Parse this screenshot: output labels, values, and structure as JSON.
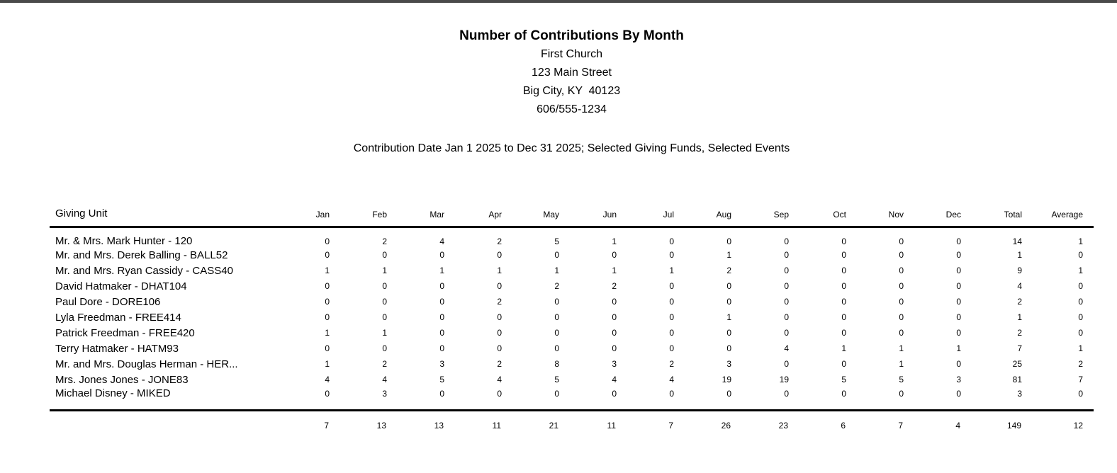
{
  "top_bar_color": "#4a4a4a",
  "header": {
    "title": "Number of Contributions By Month",
    "org_name": "First Church",
    "address_street": "123 Main Street",
    "address_city": "Big City, KY  40123",
    "phone": "606/555-1234",
    "criteria": "Contribution Date Jan 1 2025 to Dec 31 2025; Selected Giving Funds, Selected Events"
  },
  "table": {
    "unit_column_header": "Giving Unit",
    "month_headers": [
      "Jan",
      "Feb",
      "Mar",
      "Apr",
      "May",
      "Jun",
      "Jul",
      "Aug",
      "Sep",
      "Oct",
      "Nov",
      "Dec",
      "Total",
      "Average"
    ],
    "rows": [
      {
        "name": "Mr. & Mrs. Mark Hunter - 120",
        "values": [
          0,
          2,
          4,
          2,
          5,
          1,
          0,
          0,
          0,
          0,
          0,
          0,
          14,
          1
        ]
      },
      {
        "name": "Mr. and Mrs. Derek Balling - BALL52",
        "values": [
          0,
          0,
          0,
          0,
          0,
          0,
          0,
          1,
          0,
          0,
          0,
          0,
          1,
          0
        ]
      },
      {
        "name": "Mr. and Mrs. Ryan Cassidy - CASS40",
        "values": [
          1,
          1,
          1,
          1,
          1,
          1,
          1,
          2,
          0,
          0,
          0,
          0,
          9,
          1
        ]
      },
      {
        "name": "David Hatmaker - DHAT104",
        "values": [
          0,
          0,
          0,
          0,
          2,
          2,
          0,
          0,
          0,
          0,
          0,
          0,
          4,
          0
        ]
      },
      {
        "name": "Paul Dore - DORE106",
        "values": [
          0,
          0,
          0,
          2,
          0,
          0,
          0,
          0,
          0,
          0,
          0,
          0,
          2,
          0
        ]
      },
      {
        "name": "Lyla Freedman - FREE414",
        "values": [
          0,
          0,
          0,
          0,
          0,
          0,
          0,
          1,
          0,
          0,
          0,
          0,
          1,
          0
        ]
      },
      {
        "name": "Patrick Freedman - FREE420",
        "values": [
          1,
          1,
          0,
          0,
          0,
          0,
          0,
          0,
          0,
          0,
          0,
          0,
          2,
          0
        ]
      },
      {
        "name": "Terry Hatmaker - HATM93",
        "values": [
          0,
          0,
          0,
          0,
          0,
          0,
          0,
          0,
          4,
          1,
          1,
          1,
          7,
          1
        ]
      },
      {
        "name": "Mr. and Mrs. Douglas Herman - HER...",
        "values": [
          1,
          2,
          3,
          2,
          8,
          3,
          2,
          3,
          0,
          0,
          1,
          0,
          25,
          2
        ]
      },
      {
        "name": "Mrs. Jones Jones - JONE83",
        "values": [
          4,
          4,
          5,
          4,
          5,
          4,
          4,
          19,
          19,
          5,
          5,
          3,
          81,
          7
        ]
      },
      {
        "name": "Michael Disney - MIKED",
        "values": [
          0,
          3,
          0,
          0,
          0,
          0,
          0,
          0,
          0,
          0,
          0,
          0,
          3,
          0
        ]
      }
    ],
    "totals": [
      7,
      13,
      13,
      11,
      21,
      11,
      7,
      26,
      23,
      6,
      7,
      4,
      149,
      12
    ]
  }
}
